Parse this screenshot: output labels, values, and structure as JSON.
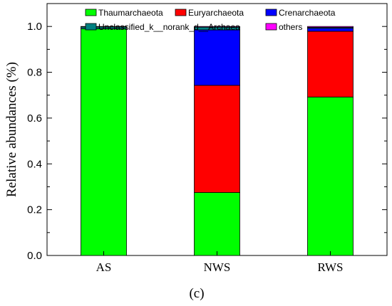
{
  "chart_data": {
    "type": "bar",
    "stacked": true,
    "categories": [
      "AS",
      "NWS",
      "RWS"
    ],
    "series": [
      {
        "name": "Thaumarchaeota",
        "color": "#00ff00",
        "values": [
          0.99,
          0.275,
          0.692
        ]
      },
      {
        "name": "Euryarchaeota",
        "color": "#ff0000",
        "values": [
          0.0,
          0.468,
          0.287
        ]
      },
      {
        "name": "Crenarchaeota",
        "color": "#0000ff",
        "values": [
          0.0,
          0.242,
          0.013
        ]
      },
      {
        "name": "Unclassified_k__norank_d__Archaea",
        "color": "#008080",
        "values": [
          0.008,
          0.012,
          0.004
        ]
      },
      {
        "name": "others",
        "color": "#ff00ff",
        "values": [
          0.002,
          0.003,
          0.004
        ]
      }
    ],
    "ylabel": "Relative abundances (%)",
    "xlabel": "",
    "ylim": [
      0.0,
      1.1
    ],
    "yticks": [
      "0.0",
      "0.2",
      "0.4",
      "0.6",
      "0.8",
      "1.0"
    ],
    "legend_position": "top",
    "grid": false
  },
  "caption": "(c)"
}
